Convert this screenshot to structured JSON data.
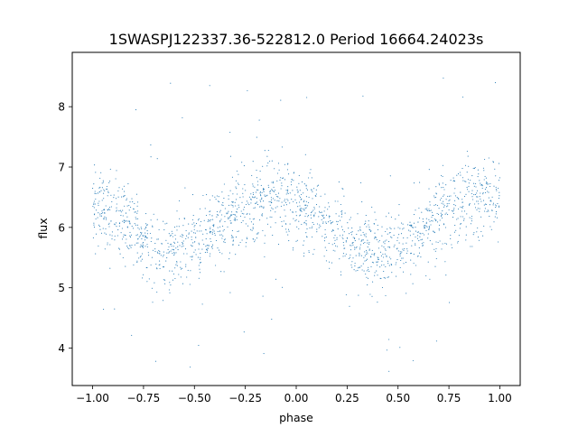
{
  "chart_data": {
    "type": "scatter",
    "title": "1SWASPJ122337.36-522812.0 Period 16664.24023s",
    "xlabel": "phase",
    "ylabel": "flux",
    "xlim": [
      -1.1,
      1.1
    ],
    "ylim": [
      3.38,
      8.9
    ],
    "xticks": [
      -1.0,
      -0.75,
      -0.5,
      -0.25,
      0.0,
      0.25,
      0.5,
      0.75,
      1.0
    ],
    "xtick_labels": [
      "−1.00",
      "−0.75",
      "−0.50",
      "−0.25",
      "0.00",
      "0.25",
      "0.50",
      "0.75",
      "1.00"
    ],
    "yticks": [
      4,
      5,
      6,
      7,
      8
    ],
    "ytick_labels": [
      "4",
      "5",
      "6",
      "7",
      "8"
    ],
    "grid": false,
    "marker_color": "#1f77b4",
    "trend": {
      "mean_flux": 6.05,
      "semi_amplitude": 0.45,
      "max_phase": -0.1,
      "period_in_phase": 1.0,
      "scatter_sigma": 0.32
    },
    "approx_points": 1800
  }
}
